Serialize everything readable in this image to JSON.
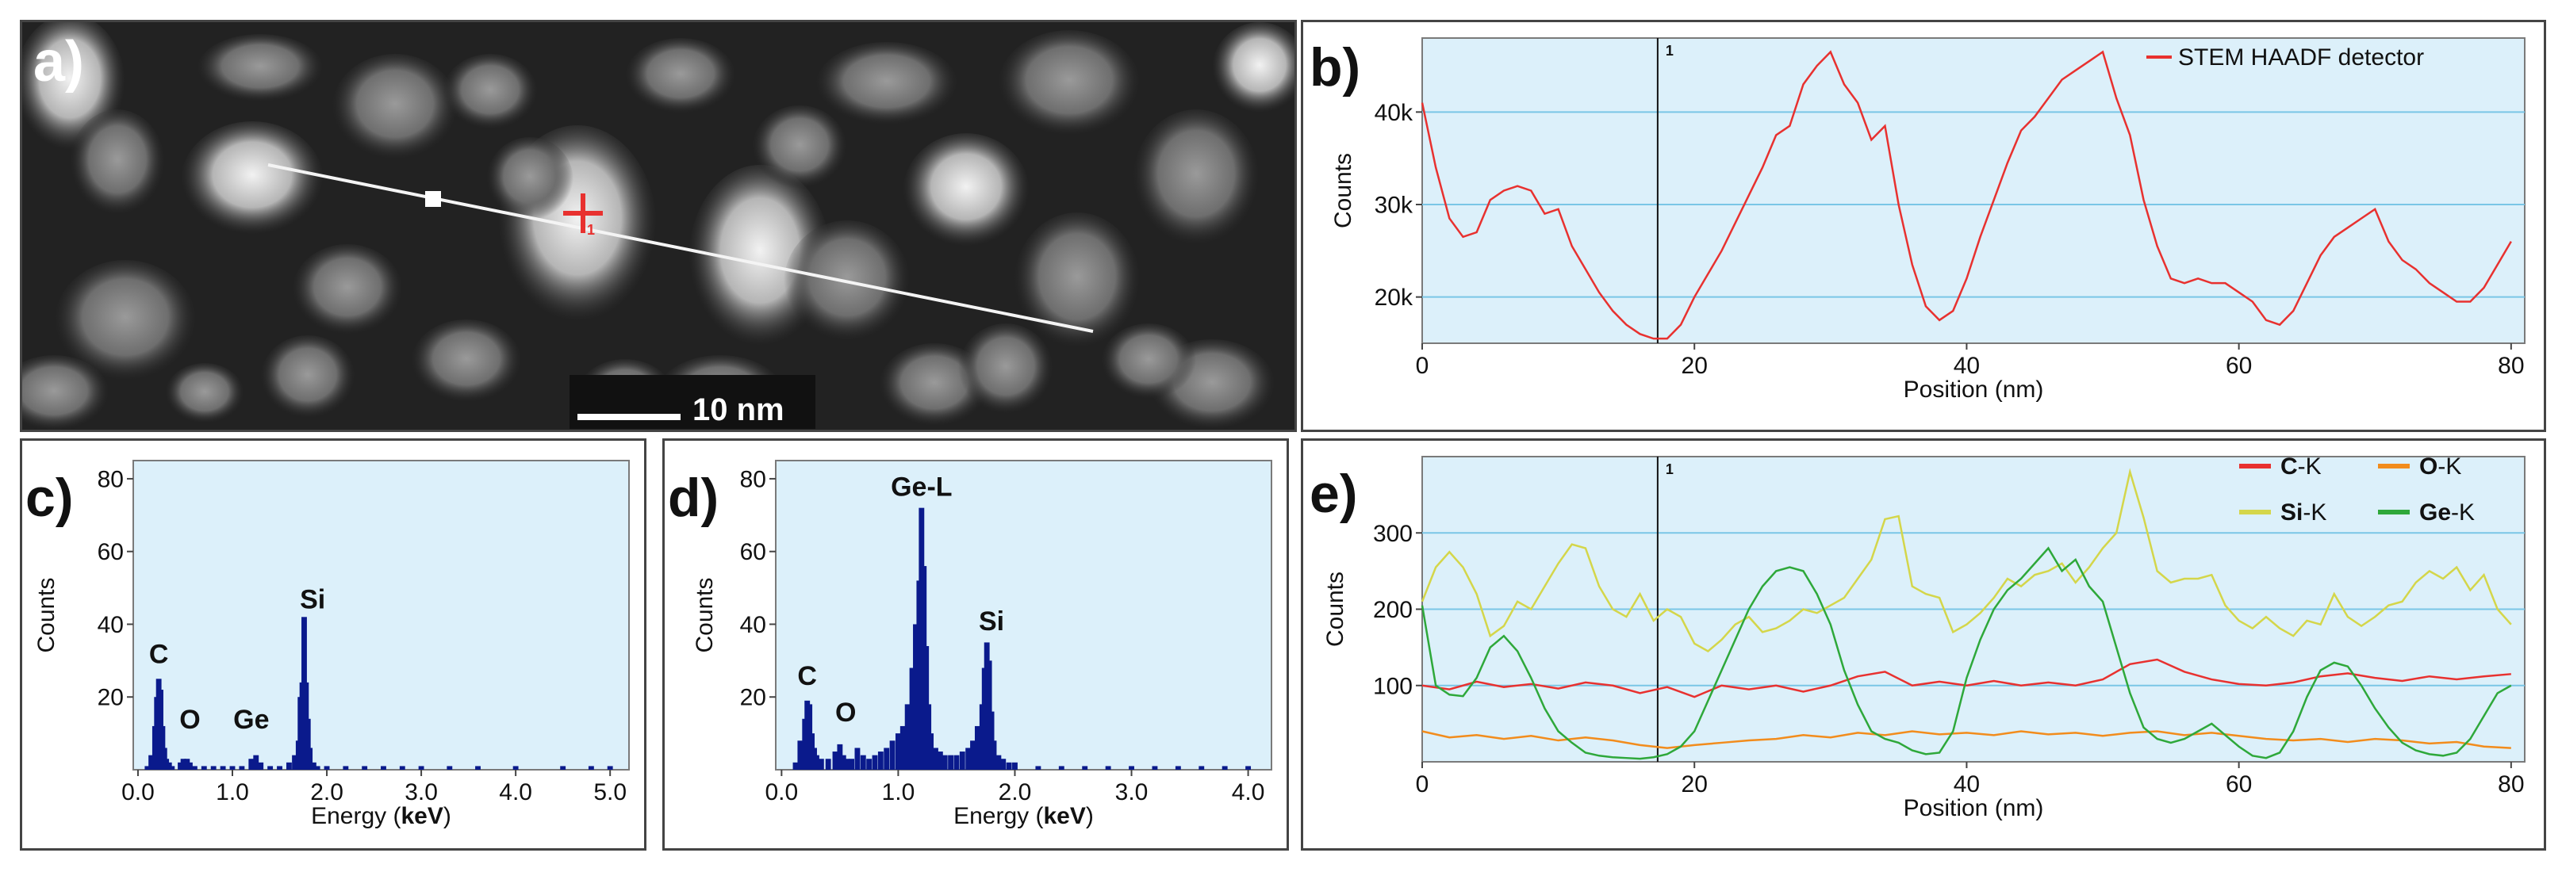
{
  "micrograph": {
    "panel_label": "a)",
    "scale_bar_label": "10 nm",
    "marker_label": "1"
  },
  "chart_data": [
    {
      "panel_label": "b)",
      "type": "line",
      "xlabel": "Position (nm)",
      "ylabel": "Counts",
      "xlim": [
        0,
        81
      ],
      "ylim": [
        15000,
        48000
      ],
      "x_ticks": [
        0,
        20,
        40,
        60,
        80
      ],
      "x_tick_labels": [
        "0",
        "20",
        "40",
        "60",
        "80"
      ],
      "y_ticks": [
        20000,
        30000,
        40000
      ],
      "y_tick_labels": [
        "20k",
        "30k",
        "40k"
      ],
      "gridlines": true,
      "legend_position": "top-right",
      "marker": {
        "x": 17.3,
        "label": "1"
      },
      "series": [
        {
          "name": "STEM HAADF detector",
          "color": "#e8312f",
          "x": [
            0,
            1,
            2,
            3,
            4,
            5,
            6,
            7,
            8,
            9,
            10,
            11,
            12,
            13,
            14,
            15,
            16,
            17,
            18,
            19,
            20,
            21,
            22,
            23,
            24,
            25,
            26,
            27,
            28,
            29,
            30,
            31,
            32,
            33,
            34,
            35,
            36,
            37,
            38,
            39,
            40,
            41,
            42,
            43,
            44,
            45,
            46,
            47,
            48,
            49,
            50,
            51,
            52,
            53,
            54,
            55,
            56,
            57,
            58,
            59,
            60,
            61,
            62,
            63,
            64,
            65,
            66,
            67,
            68,
            69,
            70,
            71,
            72,
            73,
            74,
            75,
            76,
            77,
            78,
            79,
            80
          ],
          "values": [
            41000,
            34000,
            28500,
            26500,
            27000,
            30500,
            31500,
            32000,
            31500,
            29000,
            29500,
            25500,
            23000,
            20500,
            18500,
            17000,
            16000,
            15500,
            15500,
            17000,
            20000,
            22500,
            25000,
            28000,
            31000,
            34000,
            37500,
            38500,
            43000,
            45000,
            46500,
            43000,
            41000,
            37000,
            38500,
            30000,
            23500,
            19000,
            17500,
            18500,
            22000,
            26500,
            30500,
            34500,
            38000,
            39500,
            41500,
            43500,
            44500,
            45500,
            46500,
            41500,
            37500,
            30500,
            25500,
            22000,
            21500,
            22000,
            21500,
            21500,
            20500,
            19500,
            17500,
            17000,
            18500,
            21500,
            24500,
            26500,
            27500,
            28500,
            29500,
            26000,
            24000,
            23000,
            21500,
            20500,
            19500,
            19500,
            21000,
            23500,
            26000
          ]
        }
      ]
    },
    {
      "panel_label": "c)",
      "type": "bar",
      "xlabel_prefix": "Energy (",
      "xlabel_unit": "keV",
      "xlabel_suffix": ")",
      "ylabel": "Counts",
      "xlim": [
        -0.05,
        5.2
      ],
      "ylim": [
        0,
        85
      ],
      "x_ticks": [
        0,
        1,
        2,
        3,
        4,
        5
      ],
      "x_tick_labels": [
        "0.0",
        "1.0",
        "2.0",
        "3.0",
        "4.0",
        "5.0"
      ],
      "y_ticks": [
        20,
        40,
        60,
        80
      ],
      "y_tick_labels": [
        "20",
        "40",
        "60",
        "80"
      ],
      "bar_color": "#0a1a8c",
      "peak_labels": [
        {
          "text": "C",
          "x": 0.22,
          "y": 28
        },
        {
          "text": "O",
          "x": 0.55,
          "y": 10
        },
        {
          "text": "Ge",
          "x": 1.2,
          "y": 10
        },
        {
          "text": "Si",
          "x": 1.85,
          "y": 43
        }
      ],
      "x": [
        0.1,
        0.14,
        0.18,
        0.2,
        0.22,
        0.24,
        0.26,
        0.28,
        0.3,
        0.33,
        0.36,
        0.45,
        0.48,
        0.52,
        0.55,
        0.6,
        0.7,
        0.8,
        0.9,
        1.0,
        1.1,
        1.2,
        1.25,
        1.3,
        1.4,
        1.5,
        1.6,
        1.66,
        1.7,
        1.72,
        1.74,
        1.76,
        1.78,
        1.8,
        1.82,
        1.86,
        1.9,
        2.0,
        2.2,
        2.4,
        2.6,
        2.8,
        3.0,
        3.3,
        3.6,
        4.0,
        4.5,
        4.8,
        5.0
      ],
      "values": [
        1,
        4,
        12,
        20,
        25,
        22,
        12,
        6,
        3,
        2,
        1,
        2,
        3,
        3,
        2,
        1,
        1,
        1,
        1,
        1,
        1,
        3,
        4,
        2,
        1,
        1,
        2,
        4,
        8,
        20,
        24,
        42,
        24,
        14,
        6,
        2,
        1,
        1,
        1,
        1,
        1,
        1,
        1,
        1,
        1,
        1,
        1,
        1,
        1
      ]
    },
    {
      "panel_label": "d)",
      "type": "bar",
      "xlabel_prefix": "Energy (",
      "xlabel_unit": "keV",
      "xlabel_suffix": ")",
      "ylabel": "Counts",
      "xlim": [
        -0.05,
        4.2
      ],
      "ylim": [
        0,
        85
      ],
      "x_ticks": [
        0,
        1,
        2,
        3,
        4
      ],
      "x_tick_labels": [
        "0.0",
        "1.0",
        "2.0",
        "3.0",
        "4.0"
      ],
      "y_ticks": [
        20,
        40,
        60,
        80
      ],
      "y_tick_labels": [
        "20",
        "40",
        "60",
        "80"
      ],
      "bar_color": "#0a1a8c",
      "peak_labels": [
        {
          "text": "C",
          "x": 0.22,
          "y": 22
        },
        {
          "text": "O",
          "x": 0.55,
          "y": 12
        },
        {
          "text": "Ge-L",
          "x": 1.2,
          "y": 74
        },
        {
          "text": "Si",
          "x": 1.8,
          "y": 37
        }
      ],
      "x": [
        0.12,
        0.16,
        0.2,
        0.22,
        0.24,
        0.26,
        0.28,
        0.3,
        0.34,
        0.4,
        0.46,
        0.5,
        0.53,
        0.56,
        0.6,
        0.65,
        0.7,
        0.75,
        0.8,
        0.85,
        0.9,
        0.95,
        1.0,
        1.04,
        1.08,
        1.12,
        1.15,
        1.18,
        1.2,
        1.22,
        1.24,
        1.26,
        1.28,
        1.32,
        1.36,
        1.4,
        1.45,
        1.5,
        1.55,
        1.6,
        1.64,
        1.68,
        1.72,
        1.74,
        1.76,
        1.78,
        1.8,
        1.82,
        1.86,
        1.9,
        1.95,
        2.0,
        2.2,
        2.4,
        2.6,
        2.8,
        3.0,
        3.2,
        3.4,
        3.6,
        3.8,
        4.0
      ],
      "values": [
        2,
        8,
        14,
        19,
        18,
        10,
        6,
        4,
        3,
        3,
        5,
        7,
        4,
        3,
        3,
        6,
        4,
        3,
        4,
        5,
        6,
        8,
        10,
        12,
        18,
        28,
        40,
        52,
        72,
        56,
        34,
        18,
        10,
        6,
        5,
        4,
        4,
        4,
        5,
        6,
        8,
        12,
        18,
        28,
        35,
        30,
        16,
        8,
        4,
        3,
        2,
        2,
        1,
        1,
        1,
        1,
        1,
        1,
        1,
        1,
        1,
        1
      ]
    },
    {
      "panel_label": "e)",
      "type": "line",
      "xlabel": "Position (nm)",
      "ylabel": "Counts",
      "xlim": [
        0,
        81
      ],
      "ylim": [
        0,
        400
      ],
      "x_ticks": [
        0,
        20,
        40,
        60,
        80
      ],
      "x_tick_labels": [
        "0",
        "20",
        "40",
        "60",
        "80"
      ],
      "y_ticks": [
        100,
        200,
        300
      ],
      "y_tick_labels": [
        "100",
        "200",
        "300"
      ],
      "gridlines": true,
      "legend_position": "top-right",
      "marker": {
        "x": 17.3,
        "label": "1"
      },
      "series": [
        {
          "name": "C",
          "name_suffix": "-K",
          "color": "#e8312f",
          "x": [
            0,
            2,
            4,
            6,
            8,
            10,
            12,
            14,
            16,
            18,
            20,
            22,
            24,
            26,
            28,
            30,
            32,
            34,
            36,
            38,
            40,
            42,
            44,
            46,
            48,
            50,
            52,
            54,
            56,
            58,
            60,
            62,
            64,
            66,
            68,
            70,
            72,
            74,
            76,
            78,
            80
          ],
          "values": [
            100,
            95,
            105,
            98,
            102,
            96,
            104,
            100,
            90,
            98,
            85,
            100,
            95,
            100,
            92,
            100,
            112,
            118,
            100,
            105,
            100,
            106,
            100,
            104,
            100,
            108,
            128,
            134,
            118,
            108,
            102,
            100,
            104,
            112,
            116,
            110,
            106,
            112,
            108,
            112,
            115
          ]
        },
        {
          "name": "O",
          "name_suffix": "-K",
          "color": "#f28c1c",
          "x": [
            0,
            2,
            4,
            6,
            8,
            10,
            12,
            14,
            16,
            18,
            20,
            22,
            24,
            26,
            28,
            30,
            32,
            34,
            36,
            38,
            40,
            42,
            44,
            46,
            48,
            50,
            52,
            54,
            56,
            58,
            60,
            62,
            64,
            66,
            68,
            70,
            72,
            74,
            76,
            78,
            80
          ],
          "values": [
            40,
            32,
            35,
            30,
            34,
            28,
            32,
            28,
            22,
            18,
            22,
            25,
            28,
            30,
            35,
            32,
            38,
            35,
            40,
            36,
            38,
            35,
            40,
            36,
            38,
            34,
            38,
            40,
            35,
            38,
            34,
            30,
            28,
            30,
            26,
            30,
            28,
            24,
            26,
            20,
            18
          ]
        },
        {
          "name": "Si",
          "name_suffix": "-K",
          "color": "#d4d64a",
          "x": [
            0,
            1,
            2,
            3,
            4,
            5,
            6,
            7,
            8,
            9,
            10,
            11,
            12,
            13,
            14,
            15,
            16,
            17,
            18,
            19,
            20,
            21,
            22,
            23,
            24,
            25,
            26,
            27,
            28,
            29,
            30,
            31,
            32,
            33,
            34,
            35,
            36,
            37,
            38,
            39,
            40,
            41,
            42,
            43,
            44,
            45,
            46,
            47,
            48,
            49,
            50,
            51,
            52,
            53,
            54,
            55,
            56,
            57,
            58,
            59,
            60,
            61,
            62,
            63,
            64,
            65,
            66,
            67,
            68,
            69,
            70,
            71,
            72,
            73,
            74,
            75,
            76,
            77,
            78,
            79,
            80
          ],
          "values": [
            210,
            255,
            275,
            255,
            220,
            165,
            178,
            210,
            200,
            230,
            260,
            285,
            280,
            230,
            200,
            190,
            220,
            185,
            200,
            190,
            155,
            145,
            160,
            180,
            190,
            170,
            175,
            185,
            200,
            195,
            205,
            215,
            240,
            265,
            318,
            322,
            230,
            220,
            215,
            170,
            180,
            195,
            215,
            240,
            230,
            245,
            250,
            260,
            235,
            255,
            280,
            300,
            380,
            320,
            250,
            235,
            240,
            240,
            245,
            205,
            185,
            175,
            190,
            175,
            165,
            185,
            180,
            220,
            190,
            178,
            190,
            205,
            210,
            235,
            250,
            240,
            255,
            225,
            245,
            200,
            180
          ]
        },
        {
          "name": "Ge",
          "name_suffix": "-K",
          "color": "#2ea83a",
          "x": [
            0,
            1,
            2,
            3,
            4,
            5,
            6,
            7,
            8,
            9,
            10,
            11,
            12,
            13,
            14,
            15,
            16,
            17,
            18,
            19,
            20,
            21,
            22,
            23,
            24,
            25,
            26,
            27,
            28,
            29,
            30,
            31,
            32,
            33,
            34,
            35,
            36,
            37,
            38,
            39,
            40,
            41,
            42,
            43,
            44,
            45,
            46,
            47,
            48,
            49,
            50,
            51,
            52,
            53,
            54,
            55,
            56,
            57,
            58,
            59,
            60,
            61,
            62,
            63,
            64,
            65,
            66,
            67,
            68,
            69,
            70,
            71,
            72,
            73,
            74,
            75,
            76,
            77,
            78,
            79,
            80
          ],
          "values": [
            205,
            100,
            88,
            86,
            110,
            150,
            165,
            145,
            110,
            70,
            40,
            25,
            12,
            8,
            6,
            5,
            4,
            6,
            10,
            20,
            40,
            80,
            120,
            160,
            200,
            230,
            250,
            255,
            250,
            220,
            180,
            120,
            75,
            40,
            30,
            25,
            15,
            10,
            12,
            40,
            110,
            160,
            200,
            225,
            240,
            260,
            280,
            250,
            265,
            230,
            210,
            150,
            90,
            45,
            30,
            25,
            30,
            40,
            50,
            35,
            20,
            8,
            5,
            12,
            40,
            85,
            120,
            130,
            125,
            100,
            70,
            45,
            25,
            15,
            10,
            8,
            12,
            30,
            60,
            90,
            100
          ]
        }
      ]
    }
  ]
}
